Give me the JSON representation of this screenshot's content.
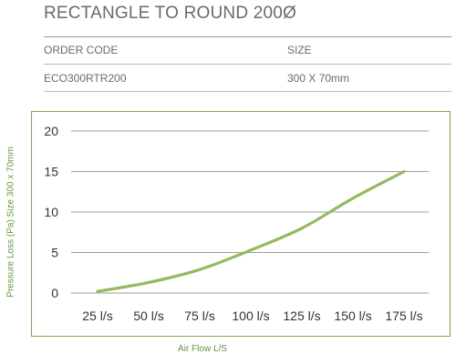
{
  "header": {
    "title": "RECTANGLE TO ROUND 200Ø"
  },
  "table": {
    "columns": [
      "ORDER CODE",
      "SIZE"
    ],
    "rows": [
      [
        "ECO300RTR200",
        "300 X 70mm"
      ]
    ]
  },
  "colors": {
    "line": "#93bb5c",
    "frame": "#7fa84a",
    "axis_label": "#5e9b3a",
    "grid": "#9a9a9a"
  },
  "chart_data": {
    "type": "line",
    "categories": [
      "25 l/s",
      "50 l/s",
      "75 l/s",
      "100 l/s",
      "125 l/s",
      "150 l/s",
      "175 l/s"
    ],
    "series": [
      {
        "values": [
          0.2,
          1.3,
          2.9,
          5.3,
          8.0,
          11.7,
          15.0
        ]
      }
    ],
    "ylim": [
      0,
      20
    ],
    "yticks": [
      0,
      5,
      10,
      15,
      20
    ],
    "xlabel": "Air Flow L/S",
    "ylabel": "Pressure Loss (Pa) Size 300 x 70mm",
    "grid": "horizontal"
  }
}
